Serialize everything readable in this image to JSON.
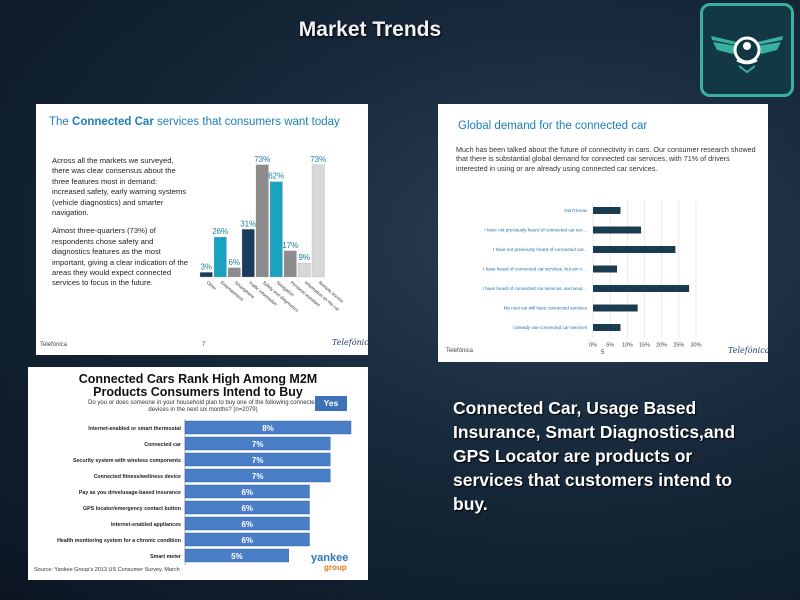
{
  "slide": {
    "title": "Market Trends"
  },
  "logo": {
    "icon": "winged-car-icon",
    "border_color": "#3ab0a0"
  },
  "panel1": {
    "title_pre": "The ",
    "title_bold": "Connected Car",
    "title_post": " services that consumers want today",
    "paragraph1": "Across all the markets we surveyed, there was clear consensus about the three features most in demand: increased safety, early warning systems (vehicle diagnostics) and smarter navigation.",
    "paragraph2": "Almost three-quarters (73%) of respondents chose safety and diagnostics features as the most important, giving a clear indication of the areas they would expect connected services to focus in the future.",
    "footer_left": "Telefónica",
    "page_number": "7",
    "footer_logo": "Telefónica"
  },
  "panel2": {
    "title": "Global demand for the connected car",
    "text": "Much has been talked about the future of connectivity in cars. Our consumer research showed that there is substantial global demand for connected car services, with 71% of drivers interested in using or are already using connected car services.",
    "footer_left": "Telefónica",
    "page_number": "5",
    "footer_logo": "Telefónica"
  },
  "panel3": {
    "title_line1": "Connected Cars Rank High Among M2M",
    "title_line2": "Products Consumers Intend to Buy",
    "subtitle": "Do you or does someone in your household plan to buy one of the following connected devices in the next six months? (n=2079)",
    "yes_label": "Yes",
    "source": "Source: Yankee Group's 2013 US Consumer Survey, March",
    "brand": "yankee",
    "brand_sub": "group"
  },
  "caption": "Connected Car, Usage Based Insurance, Smart Diagnostics,and GPS Locator are products or services  that customers intend to buy.",
  "chart_data": [
    {
      "type": "bar",
      "title": "",
      "series": [
        {
          "name": "",
          "color": "#1a3c5e",
          "values": [
            3,
            31
          ]
        },
        {
          "name": "",
          "color": "#1aa3c0",
          "values": [
            26,
            62
          ]
        },
        {
          "name": "",
          "color": "#8c8c8c",
          "values": [
            6,
            73,
            17
          ]
        },
        {
          "name": "",
          "color": "#d8d8d8",
          "values": [
            9,
            73
          ]
        }
      ],
      "value_labels": [
        "3%",
        "26%",
        "6%",
        "31%",
        "73%",
        "62%",
        "17%",
        "9%",
        "73%"
      ],
      "bars": [
        {
          "value": 3,
          "color": "#1a3c5e"
        },
        {
          "value": 26,
          "color": "#1aa3c0"
        },
        {
          "value": 6,
          "color": "#8c8c8c"
        },
        {
          "value": 31,
          "color": "#1a3c5e"
        },
        {
          "value": 73,
          "color": "#8c8c8c"
        },
        {
          "value": 62,
          "color": "#1aa3c0"
        },
        {
          "value": 17,
          "color": "#8c8c8c"
        },
        {
          "value": 9,
          "color": "#d8d8d8"
        },
        {
          "value": 73,
          "color": "#d8d8d8"
        }
      ],
      "category_labels": [
        "Other",
        "Entertainment",
        "Smartphone",
        "Traffic information",
        "Safety and diagnostics",
        "Navigation",
        "Personal assistant",
        "Information on the car",
        "Remote access"
      ],
      "ylim": [
        0,
        80
      ]
    },
    {
      "type": "bar",
      "orientation": "horizontal",
      "title": "",
      "categories": [
        "Don't know",
        "I have not previously heard of connected car services, and am not interested in...",
        "I have not previously heard of connected car...",
        "I have heard of connected car services, but am not interested in using them",
        "I have heard of connected car services, and would be interested in using them",
        "My next car will have connected services",
        "I already use connected car services"
      ],
      "values": [
        8,
        14,
        24,
        7,
        28,
        13,
        8
      ],
      "x_ticks": [
        "0%",
        "5%",
        "10%",
        "15%",
        "20%",
        "25%",
        "30%"
      ],
      "xlim": [
        0,
        30
      ],
      "bar_color": "#1a3c50"
    },
    {
      "type": "bar",
      "orientation": "horizontal",
      "title": "Connected Cars Rank High Among M2M Products Consumers Intend to Buy",
      "categories": [
        "Internet-enabled or smart thermostat",
        "Connected car",
        "Security system with wireless components",
        "Connected fitness/wellness device",
        "Pay as you drive/usage-based insurance",
        "GPS locator/emergency contact button",
        "Internet-enabled appliances",
        "Health monitoring system for a chronic condition",
        "Smart meter"
      ],
      "values": [
        8,
        7,
        7,
        7,
        6,
        6,
        6,
        6,
        5
      ],
      "value_labels": [
        "8%",
        "7%",
        "7%",
        "7%",
        "6%",
        "6%",
        "6%",
        "6%",
        "5%"
      ],
      "series_name": "Yes",
      "bar_color": "#4a7fc8",
      "xlim": [
        0,
        8
      ]
    }
  ]
}
